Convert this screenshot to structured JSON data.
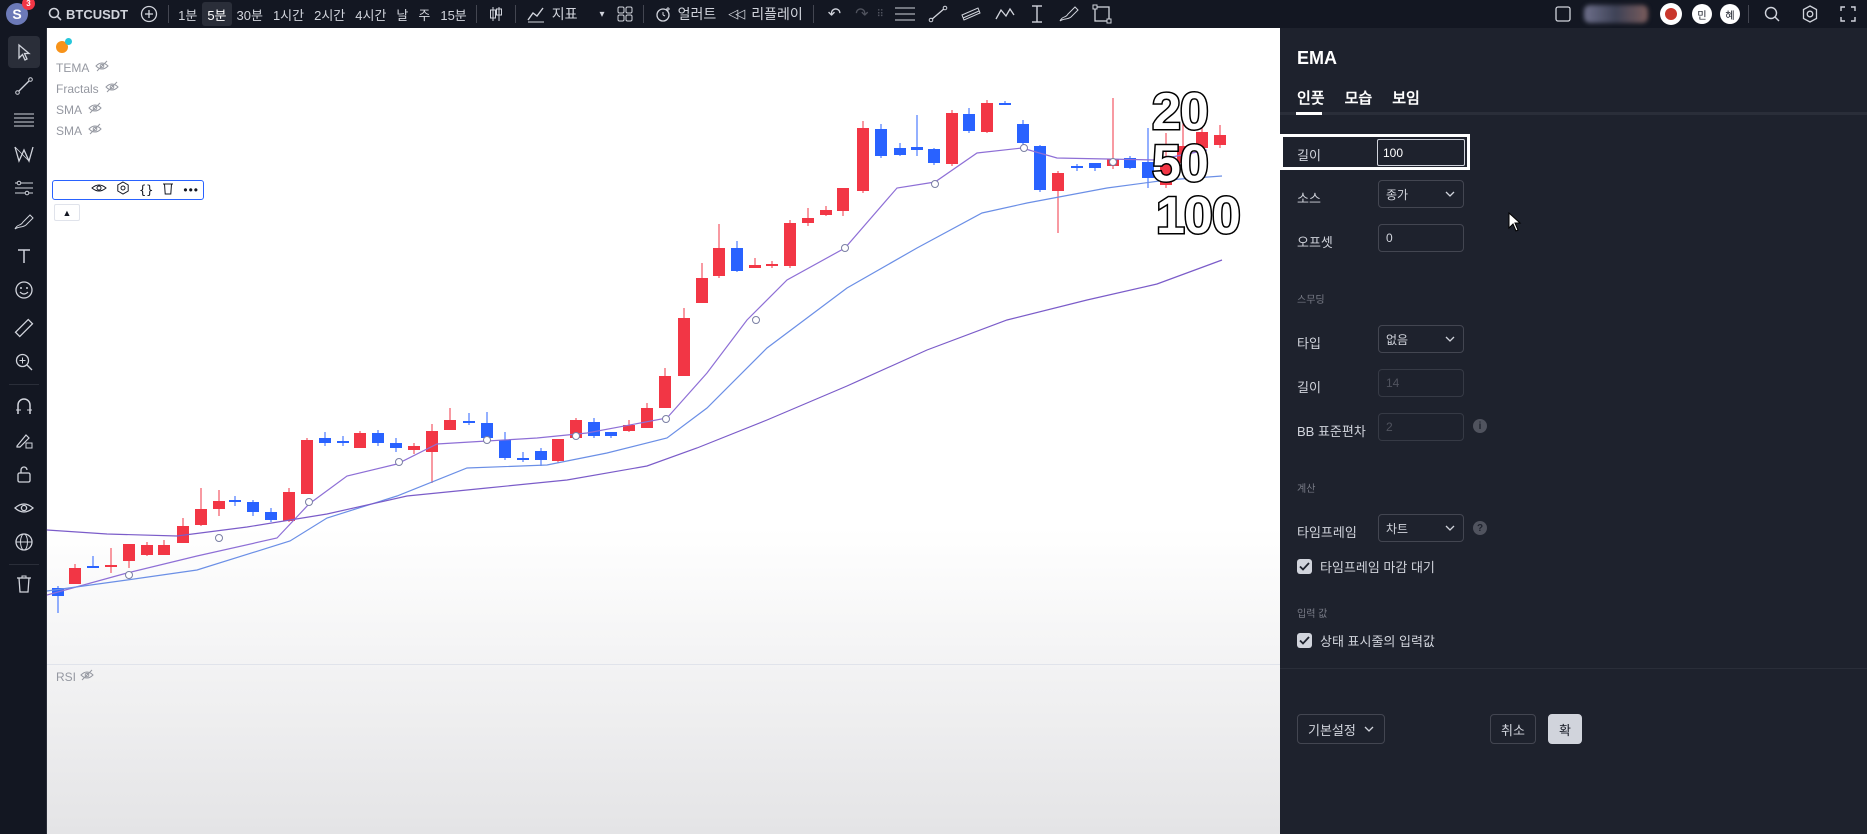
{
  "topbar": {
    "avatar_letter": "S",
    "avatar_badge": "3",
    "symbol": "BTCUSDT",
    "timeframes": [
      "1분",
      "5분",
      "30분",
      "1시간",
      "2시간",
      "4시간",
      "날",
      "주",
      "15분"
    ],
    "active_timeframe": "5분",
    "indicators_label": "지표",
    "alert_label": "얼러트",
    "replay_label": "리플레이",
    "user_badges": [
      "민",
      "혜"
    ]
  },
  "legend": {
    "items": [
      "TEMA",
      "Fractals",
      "SMA",
      "SMA"
    ],
    "rsi_label": "RSI"
  },
  "overlay_numbers": [
    "20",
    "50",
    "100"
  ],
  "panel": {
    "title": "EMA",
    "tabs": [
      "인풋",
      "모습",
      "보임"
    ],
    "fields": {
      "length_label": "길이",
      "length_value": "100",
      "source_label": "소스",
      "source_value": "종가",
      "offset_label": "오프셋",
      "offset_value": "0"
    },
    "smoothing": {
      "section": "스무딩",
      "type_label": "타입",
      "type_value": "없음",
      "length_label": "길이",
      "length_value": "14",
      "bb_label": "BB 표준편차",
      "bb_value": "2"
    },
    "calc": {
      "section": "계산",
      "tf_label": "타임프레임",
      "tf_value": "차트",
      "wait_label": "타임프레임 마감 대기"
    },
    "input_values": {
      "section": "입력 값",
      "statusbar_label": "상태 표시줄의 입력값"
    },
    "footer": {
      "defaults_label": "기본설정",
      "cancel_label": "취소",
      "ok_label": "확"
    }
  },
  "colors": {
    "bull": "#f23645",
    "bear": "#2962ff",
    "ema20": "#8e6fd6",
    "ema50": "#6b8fe6",
    "ema100": "#7b5cc9",
    "panel_bg": "#1e222d",
    "app_bg": "#131722"
  }
}
